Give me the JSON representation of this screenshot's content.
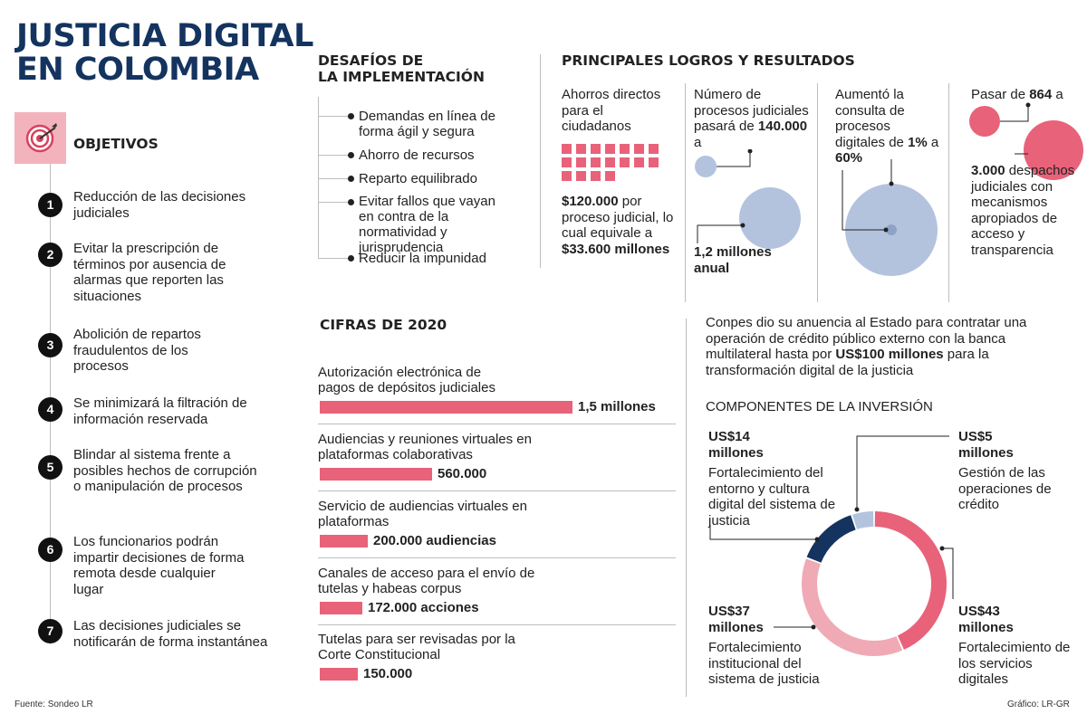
{
  "title_line1": "JUSTICIA DIGITAL",
  "title_line2": "EN COLOMBIA",
  "objetivos": {
    "heading": "OBJETIVOS",
    "icon": "target-icon",
    "items": [
      {
        "n": "1",
        "text": "Reducción de las decisiones judiciales"
      },
      {
        "n": "2",
        "text": "Evitar la prescripción de términos por ausencia de alarmas que reporten las situaciones"
      },
      {
        "n": "3",
        "text": "Abolición de repartos fraudulentos de los procesos"
      },
      {
        "n": "4",
        "text": "Se minimizará la filtración de información reservada"
      },
      {
        "n": "5",
        "text": "Blindar al sistema frente a posibles hechos de corrupción o manipulación de procesos"
      },
      {
        "n": "6",
        "text": "Los funcionarios podrán impartir decisiones de forma remota desde cualquier lugar"
      },
      {
        "n": "7",
        "text": "Las decisiones judiciales se notificarán de forma instantánea"
      }
    ]
  },
  "desafios": {
    "heading_l1": "DESAFÍOS DE",
    "heading_l2": "LA IMPLEMENTACIÓN",
    "items": [
      "Demandas en línea de forma ágil y segura",
      "Ahorro de recursos",
      "Reparto equilibrado",
      "Evitar fallos que vayan en contra de la normatividad y jurisprudencia",
      "Reducir la impunidad"
    ]
  },
  "logros": {
    "heading": "PRINCIPALES LOGROS Y RESULTADOS",
    "col1": {
      "text": "Ahorros directos para el ciudadanos",
      "value_bold": "$120.000",
      "value_rest": " por proceso judicial, lo cual equivale a ",
      "total_bold": "$33.600 millones"
    },
    "col2": {
      "text": "Número de procesos judiciales pasará de ",
      "from": "140.000",
      "to_word": " a",
      "to": "1,2 millones anual"
    },
    "col3": {
      "text": "Aumentó la consulta de procesos digitales de ",
      "from": "1%",
      "mid": " a ",
      "to": "60%"
    },
    "col4": {
      "pre": "Pasar de ",
      "from": "864",
      "post": " a",
      "to": "3.000",
      "rest": " despachos judiciales con mecanismos apropiados de acceso y transparencia"
    }
  },
  "cifras": {
    "heading": "CIFRAS DE 2020",
    "items": [
      {
        "label": "Autorización electrónica de pagos de depósitos judiciales",
        "value": "1,5 millones"
      },
      {
        "label": "Audiencias y reuniones virtuales en plataformas colaborativas",
        "value": "560.000"
      },
      {
        "label": "Servicio de audiencias virtuales en plataformas",
        "value": "200.000 audiencias"
      },
      {
        "label": "Canales de acceso para el envío de tutelas y habeas corpus",
        "value": "172.000 acciones"
      },
      {
        "label": "Tutelas para ser revisadas por la Corte Constitucional",
        "value": "150.000"
      }
    ]
  },
  "conpes": {
    "text_pre": "Conpes dio su anuencia al Estado para contratar una operación de crédito público externo con la banca multilateral hasta por ",
    "amount": "US$100 millones",
    "text_post": " para la transformación digital de la justicia"
  },
  "componentes": {
    "heading": "COMPONENTES DE LA INVERSIÓN",
    "items": [
      {
        "amount": "US$14 millones",
        "desc": "Fortalecimiento del entorno y cultura digital del sistema de justicia",
        "color": "#14335f"
      },
      {
        "amount": "US$5 millones",
        "desc": "Gestión de las operaciones de crédito",
        "color": "#b3c3de"
      },
      {
        "amount": "US$37 millones",
        "desc": "Fortalecimiento institucional del sistema de justicia",
        "color": "#f0aab5"
      },
      {
        "amount": "US$43 millones",
        "desc": "Fortalecimiento de los servicios digitales",
        "color": "#e8627a"
      }
    ]
  },
  "footer_left": "Fuente: Sondeo LR",
  "footer_right": "Gráfico: LR-GR",
  "chart_data": [
    {
      "type": "bar",
      "title": "CIFRAS DE 2020",
      "categories": [
        "Autorización electrónica de pagos de depósitos judiciales",
        "Audiencias y reuniones virtuales en plataformas colaborativas",
        "Servicio de audiencias virtuales en plataformas",
        "Canales de acceso para el envío de tutelas y habeas corpus",
        "Tutelas para ser revisadas por la Corte Constitucional"
      ],
      "values": [
        1500000,
        560000,
        200000,
        172000,
        150000
      ]
    },
    {
      "type": "pie",
      "title": "COMPONENTES DE LA INVERSIÓN",
      "categories": [
        "Fortalecimiento de los servicios digitales",
        "Fortalecimiento institucional del sistema de justicia",
        "Fortalecimiento del entorno y cultura digital del sistema de justicia",
        "Gestión de las operaciones de crédito"
      ],
      "values": [
        43,
        37,
        14,
        5
      ]
    }
  ]
}
